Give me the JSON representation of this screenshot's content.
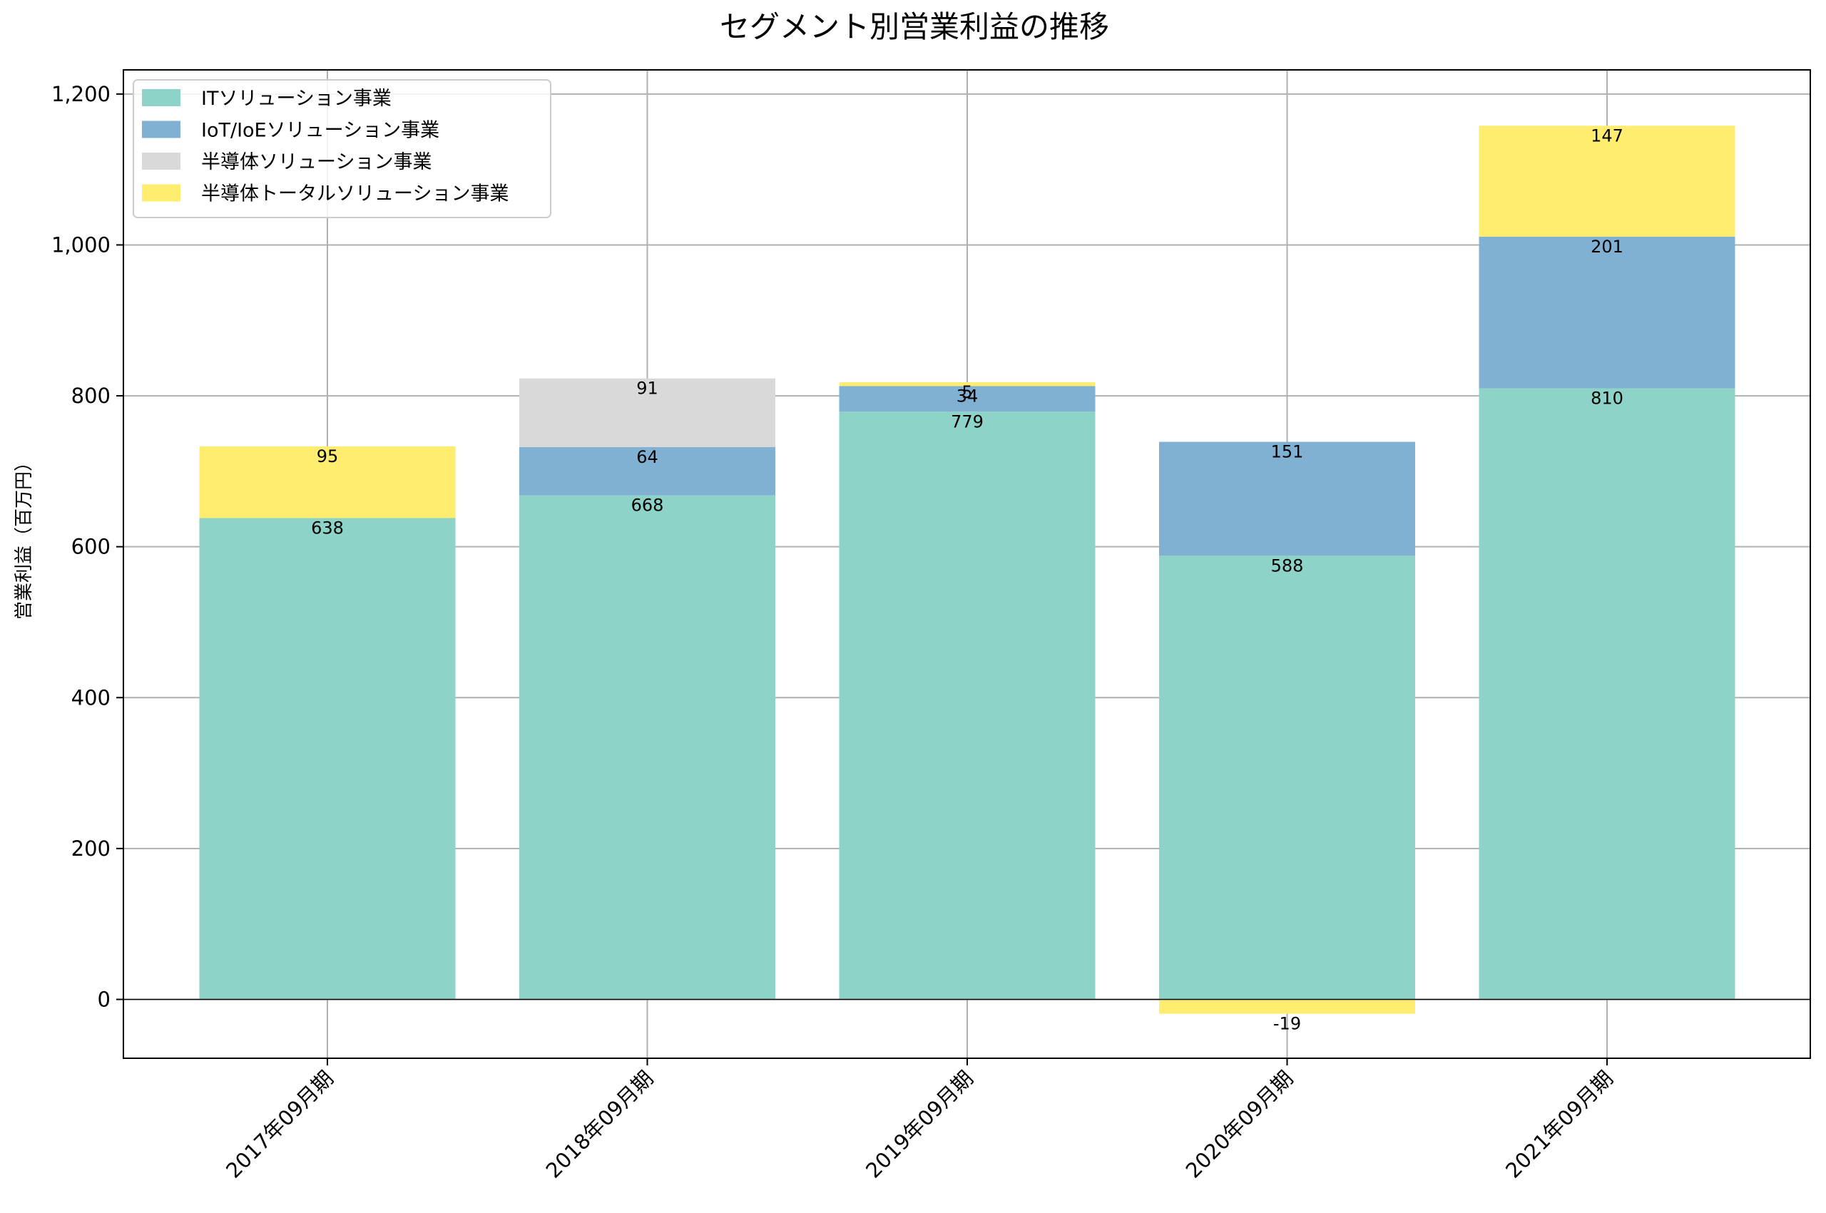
{
  "chart_data": {
    "type": "bar",
    "stacked": true,
    "title": "セグメント別営業利益の推移",
    "xlabel": "",
    "ylabel": "営業利益（百万円）",
    "ylim": [
      -78,
      1232
    ],
    "yticks": [
      0,
      200,
      400,
      600,
      800,
      1000,
      1200
    ],
    "ytick_labels": [
      "0",
      "200",
      "400",
      "600",
      "800",
      "1,000",
      "1,200"
    ],
    "grid": true,
    "legend_position": "top-left",
    "categories": [
      "2017年09月期",
      "2018年09月期",
      "2019年09月期",
      "2020年09月期",
      "2021年09月期"
    ],
    "series": [
      {
        "name": "ITソリューション事業",
        "color": "#8dd3c7",
        "values": [
          638,
          668,
          779,
          588,
          810
        ]
      },
      {
        "name": "IoT/IoEソリューション事業",
        "color": "#80b1d3",
        "values": [
          null,
          64,
          34,
          151,
          201
        ]
      },
      {
        "name": "半導体ソリューション事業",
        "color": "#d9d9d9",
        "values": [
          null,
          91,
          null,
          null,
          null
        ]
      },
      {
        "name": "半導体トータルソリューション事業",
        "color": "#ffed6f",
        "values": [
          95,
          null,
          5,
          -19,
          147
        ]
      }
    ]
  }
}
